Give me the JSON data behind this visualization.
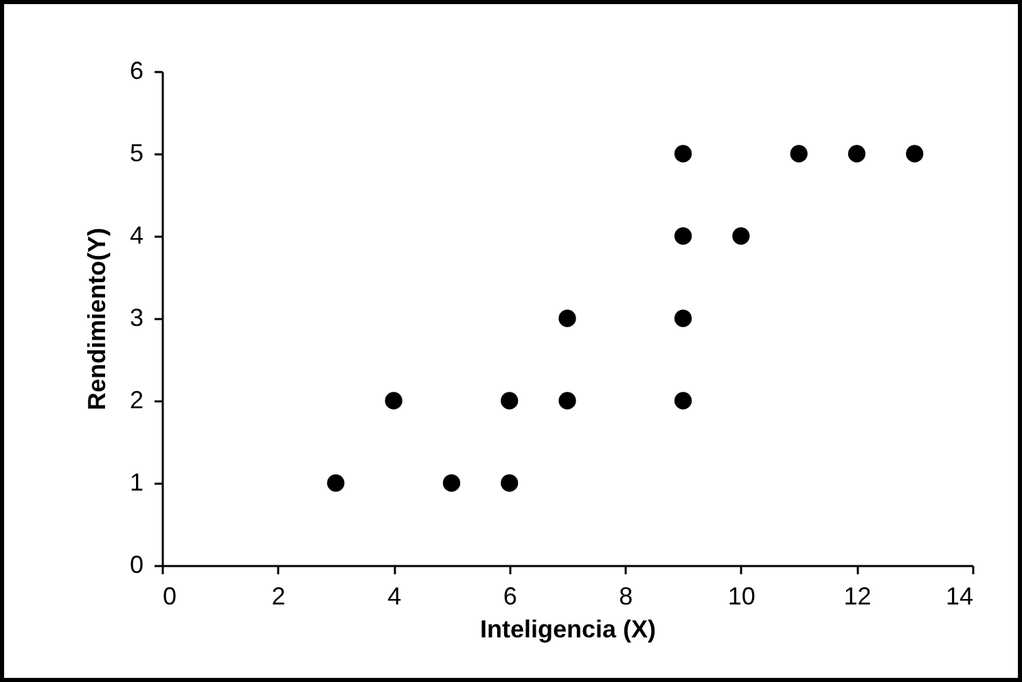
{
  "chart_data": {
    "type": "scatter",
    "xlabel": "Inteligencia (X)",
    "ylabel": "Rendimiento(Y)",
    "x": [
      3,
      4,
      5,
      6,
      6,
      7,
      7,
      9,
      9,
      9,
      9,
      10,
      11,
      12,
      13
    ],
    "series": [
      {
        "color": "#000000",
        "values": [
          1,
          2,
          1,
          2,
          1,
          3,
          2,
          5,
          4,
          3,
          2,
          4,
          5,
          5,
          5
        ]
      }
    ],
    "xlim": [
      0,
      14
    ],
    "xticks": [
      0,
      2,
      4,
      6,
      8,
      10,
      12,
      14
    ],
    "ylim": [
      0,
      6
    ],
    "yticks": [
      0,
      1,
      2,
      3,
      4,
      5,
      6
    ],
    "grid": false
  }
}
